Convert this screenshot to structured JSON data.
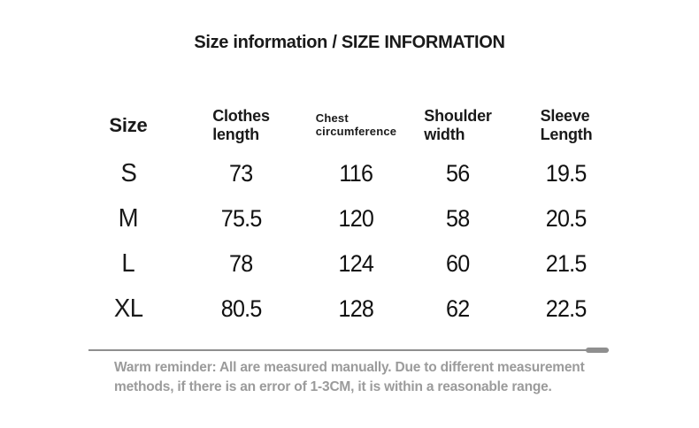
{
  "title": "Size information / SIZE INFORMATION",
  "table": {
    "headers": [
      {
        "label": "Size"
      },
      {
        "line1": "Clothes",
        "line2": "length"
      },
      {
        "line1": "Chest",
        "line2": "circumference"
      },
      {
        "line1": "Shoulder",
        "line2": "width"
      },
      {
        "line1": "Sleeve",
        "line2": "Length"
      }
    ],
    "rows": [
      {
        "size": "S",
        "clothes_length": "73",
        "chest_circumference": "116",
        "shoulder_width": "56",
        "sleeve_length": "19.5"
      },
      {
        "size": "M",
        "clothes_length": "75.5",
        "chest_circumference": "120",
        "shoulder_width": "58",
        "sleeve_length": "20.5"
      },
      {
        "size": "L",
        "clothes_length": "78",
        "chest_circumference": "124",
        "shoulder_width": "60",
        "sleeve_length": "21.5"
      },
      {
        "size": "XL",
        "clothes_length": "80.5",
        "chest_circumference": "128",
        "shoulder_width": "62",
        "sleeve_length": "22.5"
      }
    ]
  },
  "reminder": {
    "line1": "Warm reminder: All are measured manually. Due to different measurement",
    "line2": "methods, if there is an error of 1-3CM, it is within a reasonable range."
  },
  "colors": {
    "background": "#ffffff",
    "text_primary": "#1a1a1a",
    "text_muted": "#9b9b9b",
    "divider": "#8f8f8f"
  },
  "chart_data": {
    "type": "table",
    "title": "Size information / SIZE INFORMATION",
    "columns": [
      "Size",
      "Clothes length",
      "Chest circumference",
      "Shoulder width",
      "Sleeve Length"
    ],
    "rows": [
      [
        "S",
        73,
        116,
        56,
        19.5
      ],
      [
        "M",
        75.5,
        120,
        58,
        20.5
      ],
      [
        "L",
        78,
        124,
        60,
        21.5
      ],
      [
        "XL",
        80.5,
        128,
        62,
        22.5
      ]
    ],
    "footnote": "Warm reminder: All are measured manually. Due to different measurement methods, if there is an error of 1-3CM, it is within a reasonable range."
  }
}
